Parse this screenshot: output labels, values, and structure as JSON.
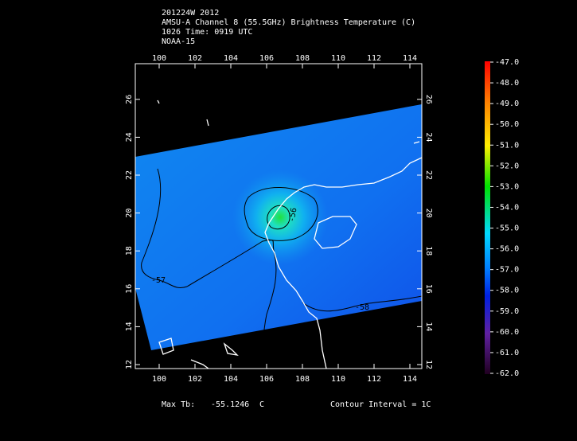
{
  "title_lines": [
    "201224W 2012",
    "AMSU-A Channel 8 (55.5GHz) Brightness Temperature (C)",
    "1026 Time: 0919 UTC",
    "NOAA-15"
  ],
  "lon_ticks": [
    100,
    102,
    104,
    106,
    108,
    110,
    112,
    114
  ],
  "lat_ticks": [
    12,
    14,
    16,
    18,
    20,
    22,
    24,
    26
  ],
  "colorbar_ticks": [
    {
      "value": -47,
      "label": "-47.0"
    },
    {
      "value": -48,
      "label": "-48.0"
    },
    {
      "value": -49,
      "label": "-49.0"
    },
    {
      "value": -50,
      "label": "-50.0"
    },
    {
      "value": -51,
      "label": "-51.0"
    },
    {
      "value": -52,
      "label": "-52.0"
    },
    {
      "value": -53,
      "label": "-53.0"
    },
    {
      "value": -54,
      "label": "-54.0"
    },
    {
      "value": -55,
      "label": "-55.0"
    },
    {
      "value": -56,
      "label": "-56.0"
    },
    {
      "value": -57,
      "label": "-57.0"
    },
    {
      "value": -58,
      "label": "-58.0"
    },
    {
      "value": -59,
      "label": "-59.0"
    },
    {
      "value": -60,
      "label": "-60.0"
    },
    {
      "value": -61,
      "label": "-61.0"
    },
    {
      "value": -62,
      "label": "-62.0"
    }
  ],
  "contour_labels": [
    "-56",
    "-57",
    "-58"
  ],
  "footer": {
    "max_label": "Max Tb:",
    "max_value": "-55.1246",
    "max_unit": "C",
    "contour_interval": "Contour Interval = 1C"
  }
}
